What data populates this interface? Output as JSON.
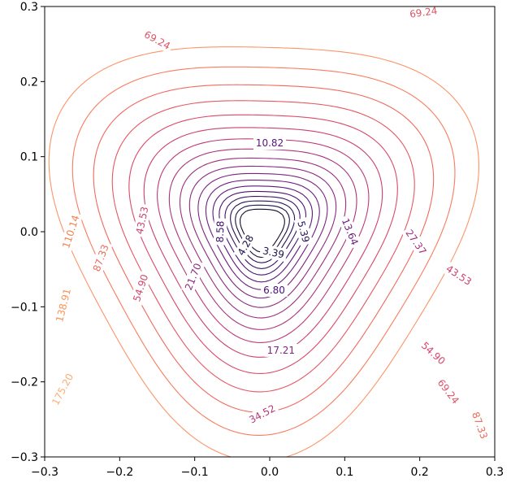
{
  "chart_data": {
    "type": "contour",
    "title": "",
    "xlabel": "",
    "ylabel": "",
    "xlim": [
      -0.3,
      0.3
    ],
    "ylim": [
      -0.3,
      0.3
    ],
    "grid": false,
    "x_ticks": [
      -0.3,
      -0.2,
      -0.1,
      0.0,
      0.1,
      0.2,
      0.3
    ],
    "x_tick_labels": [
      "−0.3",
      "−0.2",
      "−0.1",
      "0.0",
      "0.1",
      "0.2",
      "0.3"
    ],
    "y_ticks": [
      -0.3,
      -0.2,
      -0.1,
      0.0,
      0.1,
      0.2,
      0.3
    ],
    "y_tick_labels": [
      "−0.3",
      "−0.2",
      "−0.1",
      "0.0",
      "0.1",
      "0.2",
      "0.3"
    ],
    "colormap": "magma-like (dark purple low → orange high)",
    "levels": [
      1.5,
      3.39,
      4.28,
      5.39,
      6.8,
      8.58,
      10.82,
      13.64,
      17.21,
      21.7,
      27.37,
      34.52,
      43.53,
      54.9,
      69.24,
      87.33,
      110.14,
      138.91,
      175.2
    ],
    "contour_labels": [
      {
        "text": "69.24",
        "x": -0.15,
        "y": 0.255,
        "angle": -28,
        "color": "#dd5567"
      },
      {
        "text": "69.24",
        "x": 0.205,
        "y": 0.292,
        "angle": 8,
        "color": "#dd5567"
      },
      {
        "text": "10.82",
        "x": 0.0,
        "y": 0.118,
        "angle": 0,
        "color": "#57157e"
      },
      {
        "text": "110.14",
        "x": -0.265,
        "y": 0.0,
        "angle": 72,
        "color": "#f07f4f"
      },
      {
        "text": "87.33",
        "x": -0.225,
        "y": -0.035,
        "angle": 70,
        "color": "#e96c5c"
      },
      {
        "text": "43.53",
        "x": -0.17,
        "y": 0.015,
        "angle": 78,
        "color": "#c9416f"
      },
      {
        "text": "8.58",
        "x": -0.066,
        "y": 0.0,
        "angle": 88,
        "color": "#3b0f70"
      },
      {
        "text": "4.28",
        "x": -0.032,
        "y": -0.018,
        "angle": 60,
        "color": "#1d1147"
      },
      {
        "text": "3.39",
        "x": 0.005,
        "y": -0.028,
        "angle": -12,
        "color": "#1d1147"
      },
      {
        "text": "5.39",
        "x": 0.045,
        "y": 0.0,
        "angle": -75,
        "color": "#2c115f"
      },
      {
        "text": "13.64",
        "x": 0.107,
        "y": 0.0,
        "angle": -68,
        "color": "#721f81"
      },
      {
        "text": "27.37",
        "x": 0.195,
        "y": -0.014,
        "angle": -55,
        "color": "#a3307e"
      },
      {
        "text": "21.70",
        "x": -0.102,
        "y": -0.06,
        "angle": 68,
        "color": "#8c2981"
      },
      {
        "text": "54.90",
        "x": -0.172,
        "y": -0.075,
        "angle": 72,
        "color": "#d6456c"
      },
      {
        "text": "6.80",
        "x": 0.006,
        "y": -0.078,
        "angle": 0,
        "color": "#4a1079"
      },
      {
        "text": "43.53",
        "x": 0.252,
        "y": -0.058,
        "angle": -33,
        "color": "#c9416f"
      },
      {
        "text": "138.91",
        "x": -0.275,
        "y": -0.098,
        "angle": 76,
        "color": "#f8945a"
      },
      {
        "text": "17.21",
        "x": 0.015,
        "y": -0.158,
        "angle": 0,
        "color": "#7f2582"
      },
      {
        "text": "54.90",
        "x": 0.218,
        "y": -0.162,
        "angle": -42,
        "color": "#d6456c"
      },
      {
        "text": "175.20",
        "x": -0.276,
        "y": -0.21,
        "angle": 62,
        "color": "#fcae73"
      },
      {
        "text": "69.24",
        "x": 0.238,
        "y": -0.213,
        "angle": -52,
        "color": "#dd5567"
      },
      {
        "text": "34.52",
        "x": -0.01,
        "y": -0.243,
        "angle": 28,
        "color": "#b73779"
      },
      {
        "text": "87.33",
        "x": 0.28,
        "y": -0.258,
        "angle": -70,
        "color": "#e96c5c"
      }
    ]
  }
}
